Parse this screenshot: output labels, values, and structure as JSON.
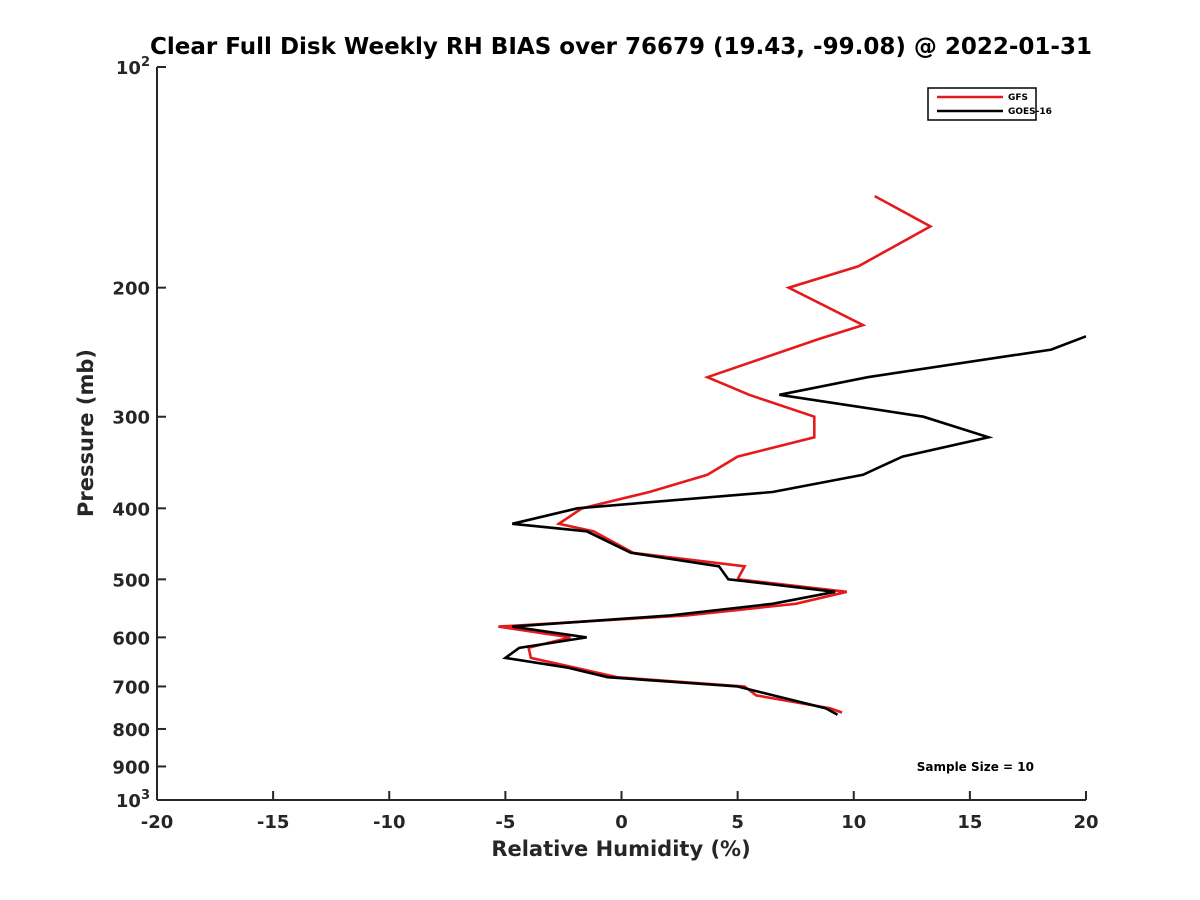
{
  "chart_data": {
    "type": "line",
    "title": "Clear Full Disk Weekly RH BIAS over 76679 (19.43, -99.08) @ 2022-01-31",
    "xlabel": "Relative Humidity (%)",
    "ylabel": "Pressure (mb)",
    "xlim": [
      -20,
      20
    ],
    "ylim": [
      100,
      1000
    ],
    "y_scale": "log",
    "y_reversed": true,
    "grid": false,
    "legend_position": "top-right",
    "x_ticks": [
      {
        "value": -20,
        "label": "-20"
      },
      {
        "value": -15,
        "label": "-15"
      },
      {
        "value": -10,
        "label": "-10"
      },
      {
        "value": -5,
        "label": "-5"
      },
      {
        "value": 0,
        "label": "0"
      },
      {
        "value": 5,
        "label": "5"
      },
      {
        "value": 10,
        "label": "10"
      },
      {
        "value": 15,
        "label": "15"
      },
      {
        "value": 20,
        "label": "20"
      }
    ],
    "y_ticks": [
      {
        "value": 100,
        "base": "10",
        "exp": "2"
      },
      {
        "value": 200,
        "base": "200",
        "exp": ""
      },
      {
        "value": 300,
        "base": "300",
        "exp": ""
      },
      {
        "value": 400,
        "base": "400",
        "exp": ""
      },
      {
        "value": 500,
        "base": "500",
        "exp": ""
      },
      {
        "value": 600,
        "base": "600",
        "exp": ""
      },
      {
        "value": 700,
        "base": "700",
        "exp": ""
      },
      {
        "value": 800,
        "base": "800",
        "exp": ""
      },
      {
        "value": 900,
        "base": "900",
        "exp": ""
      },
      {
        "value": 1000,
        "base": "10",
        "exp": "3"
      }
    ],
    "series": [
      {
        "name": "GFS",
        "color": "#e41a1c",
        "points": [
          {
            "x": 10.9,
            "p": 150
          },
          {
            "x": 13.3,
            "p": 165
          },
          {
            "x": 10.2,
            "p": 187
          },
          {
            "x": 7.2,
            "p": 200
          },
          {
            "x": 10.4,
            "p": 225
          },
          {
            "x": 8.5,
            "p": 235
          },
          {
            "x": 3.7,
            "p": 265
          },
          {
            "x": 5.5,
            "p": 280
          },
          {
            "x": 8.3,
            "p": 300
          },
          {
            "x": 8.3,
            "p": 320
          },
          {
            "x": 5.0,
            "p": 340
          },
          {
            "x": 3.7,
            "p": 360
          },
          {
            "x": 1.2,
            "p": 380
          },
          {
            "x": -1.7,
            "p": 400
          },
          {
            "x": -2.7,
            "p": 420
          },
          {
            "x": -1.2,
            "p": 430
          },
          {
            "x": 0.5,
            "p": 460
          },
          {
            "x": 5.3,
            "p": 480
          },
          {
            "x": 5.0,
            "p": 500
          },
          {
            "x": 9.7,
            "p": 520
          },
          {
            "x": 7.5,
            "p": 540
          },
          {
            "x": 2.8,
            "p": 560
          },
          {
            "x": -5.3,
            "p": 580
          },
          {
            "x": -2.2,
            "p": 600
          },
          {
            "x": -4.0,
            "p": 620
          },
          {
            "x": -3.9,
            "p": 640
          },
          {
            "x": -2.0,
            "p": 660
          },
          {
            "x": -0.2,
            "p": 680
          },
          {
            "x": 5.3,
            "p": 700
          },
          {
            "x": 5.8,
            "p": 720
          },
          {
            "x": 9.0,
            "p": 750
          },
          {
            "x": 9.5,
            "p": 760
          }
        ]
      },
      {
        "name": "GOES-16",
        "color": "#000000",
        "points": [
          {
            "x": 20.0,
            "p": 233
          },
          {
            "x": 18.5,
            "p": 243
          },
          {
            "x": 10.6,
            "p": 265
          },
          {
            "x": 6.8,
            "p": 280
          },
          {
            "x": 13.0,
            "p": 300
          },
          {
            "x": 15.8,
            "p": 320
          },
          {
            "x": 12.1,
            "p": 340
          },
          {
            "x": 10.4,
            "p": 360
          },
          {
            "x": 6.5,
            "p": 380
          },
          {
            "x": -1.9,
            "p": 400
          },
          {
            "x": -4.7,
            "p": 420
          },
          {
            "x": -1.5,
            "p": 430
          },
          {
            "x": 0.4,
            "p": 460
          },
          {
            "x": 4.2,
            "p": 480
          },
          {
            "x": 4.6,
            "p": 500
          },
          {
            "x": 9.2,
            "p": 520
          },
          {
            "x": 6.5,
            "p": 540
          },
          {
            "x": 2.1,
            "p": 560
          },
          {
            "x": -4.7,
            "p": 580
          },
          {
            "x": -1.5,
            "p": 600
          },
          {
            "x": -4.4,
            "p": 620
          },
          {
            "x": -5.0,
            "p": 640
          },
          {
            "x": -2.3,
            "p": 660
          },
          {
            "x": -0.6,
            "p": 680
          },
          {
            "x": 5.0,
            "p": 700
          },
          {
            "x": 8.8,
            "p": 750
          },
          {
            "x": 9.3,
            "p": 765
          }
        ]
      }
    ],
    "annotation": "Sample Size = 10"
  }
}
